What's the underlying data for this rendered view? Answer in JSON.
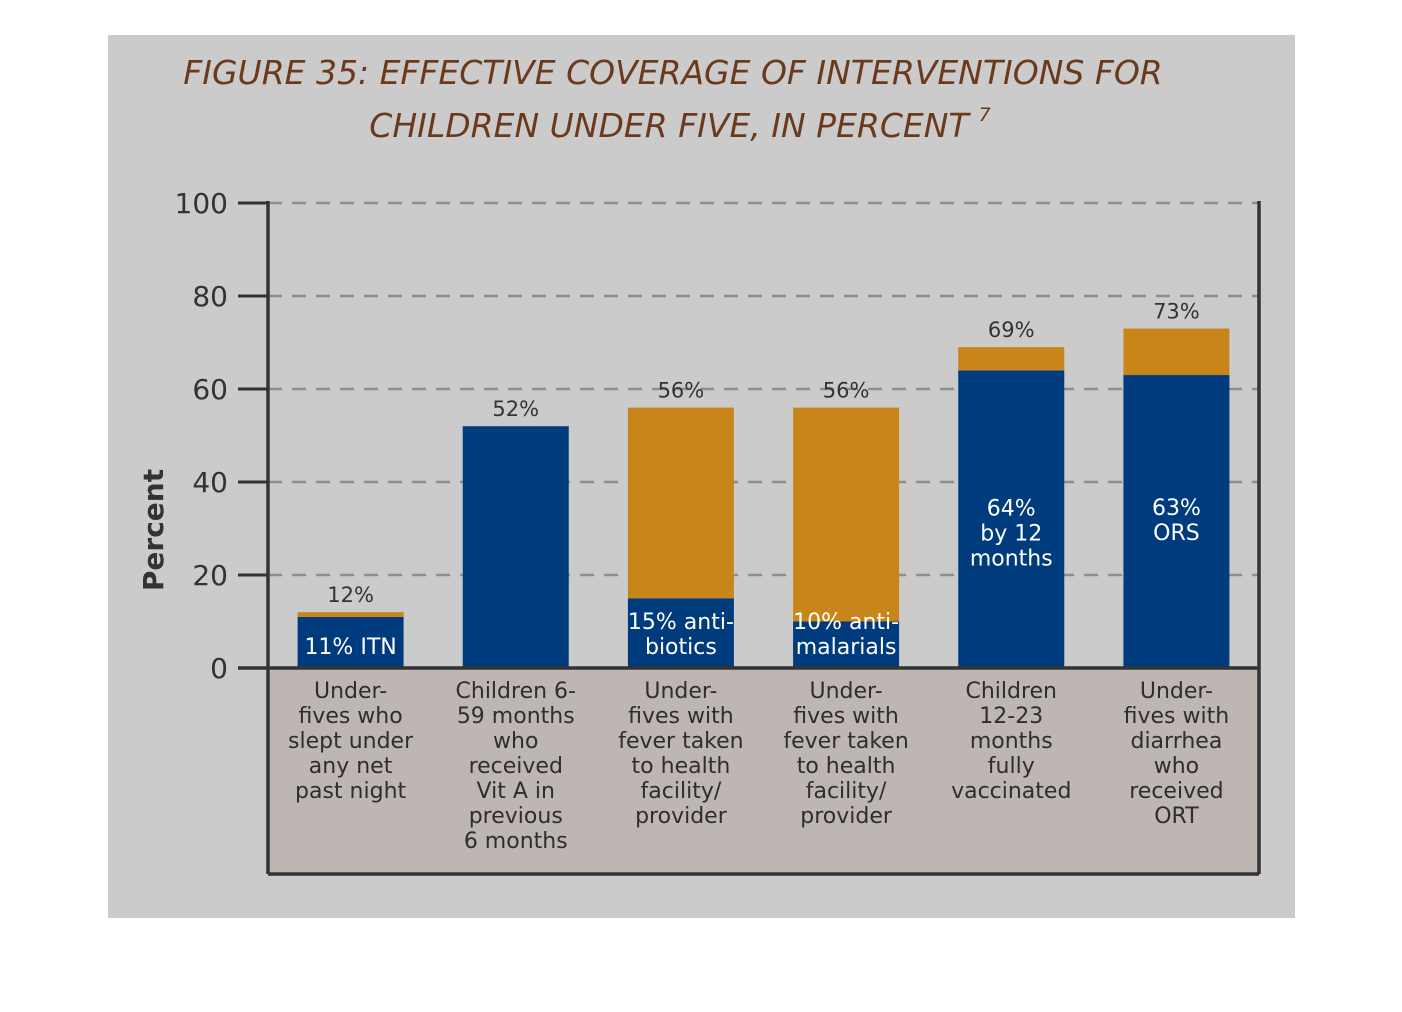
{
  "chart_data": {
    "type": "bar",
    "stacked": true,
    "title_line1": "FIGURE 35: EFFECTIVE COVERAGE OF INTERVENTIONS FOR",
    "title_line2": "CHILDREN UNDER FIVE, IN PERCENT",
    "title_superscript": "7",
    "ylabel": "Percent",
    "xlabel": "",
    "ylim": [
      0,
      100
    ],
    "yticks": [
      0,
      20,
      40,
      60,
      80,
      100
    ],
    "grid": true,
    "categories": [
      "Under-fives who slept under any net past night",
      "Children 6-59 months who received Vit A in previous 6 months",
      "Under-fives with fever taken to health facility/ provider",
      "Under-fives with fever taken to health facility/ provider",
      "Children 12-23 months fully vaccinated",
      "Under-fives with diarrhea who received ORT"
    ],
    "category_lines": [
      [
        "Under-",
        "fives who",
        "slept under",
        "any net",
        "past night"
      ],
      [
        "Children 6-",
        "59 months",
        "who",
        "received",
        "Vit A in",
        "previous",
        "6 months"
      ],
      [
        "Under-",
        "fives with",
        "fever taken",
        "to health",
        "facility/",
        "provider"
      ],
      [
        "Under-",
        "fives with",
        "fever taken",
        "to health",
        "facility/",
        "provider"
      ],
      [
        "Children",
        "12-23",
        "months",
        "fully",
        "vaccinated"
      ],
      [
        "Under-",
        "fives with",
        "diarrhea",
        "who",
        "received",
        "ORT"
      ]
    ],
    "totals": [
      12,
      52,
      56,
      56,
      69,
      73
    ],
    "total_labels": [
      "12%",
      "52%",
      "56%",
      "56%",
      "69%",
      "73%"
    ],
    "series": [
      {
        "role": "effective",
        "color": "#003c7d",
        "values": [
          11,
          52,
          15,
          10,
          64,
          63
        ]
      },
      {
        "role": "remainder",
        "color": "#c8851a",
        "values": [
          1,
          0,
          41,
          46,
          5,
          10
        ]
      }
    ],
    "inner_labels": [
      [
        "11% ITN"
      ],
      [],
      [
        "15% anti-",
        "biotics"
      ],
      [
        "10% anti-",
        "malarials"
      ],
      [
        "64%",
        "by 12",
        "months"
      ],
      [
        "63%",
        "ORS"
      ]
    ],
    "colors": {
      "panel_background": "#cbcbcb",
      "label_area_background": "#bdb6b2",
      "effective": "#003c7d",
      "remainder": "#c8851a",
      "title": "#6b3a1c",
      "gridline": "#8e8e8e"
    }
  }
}
